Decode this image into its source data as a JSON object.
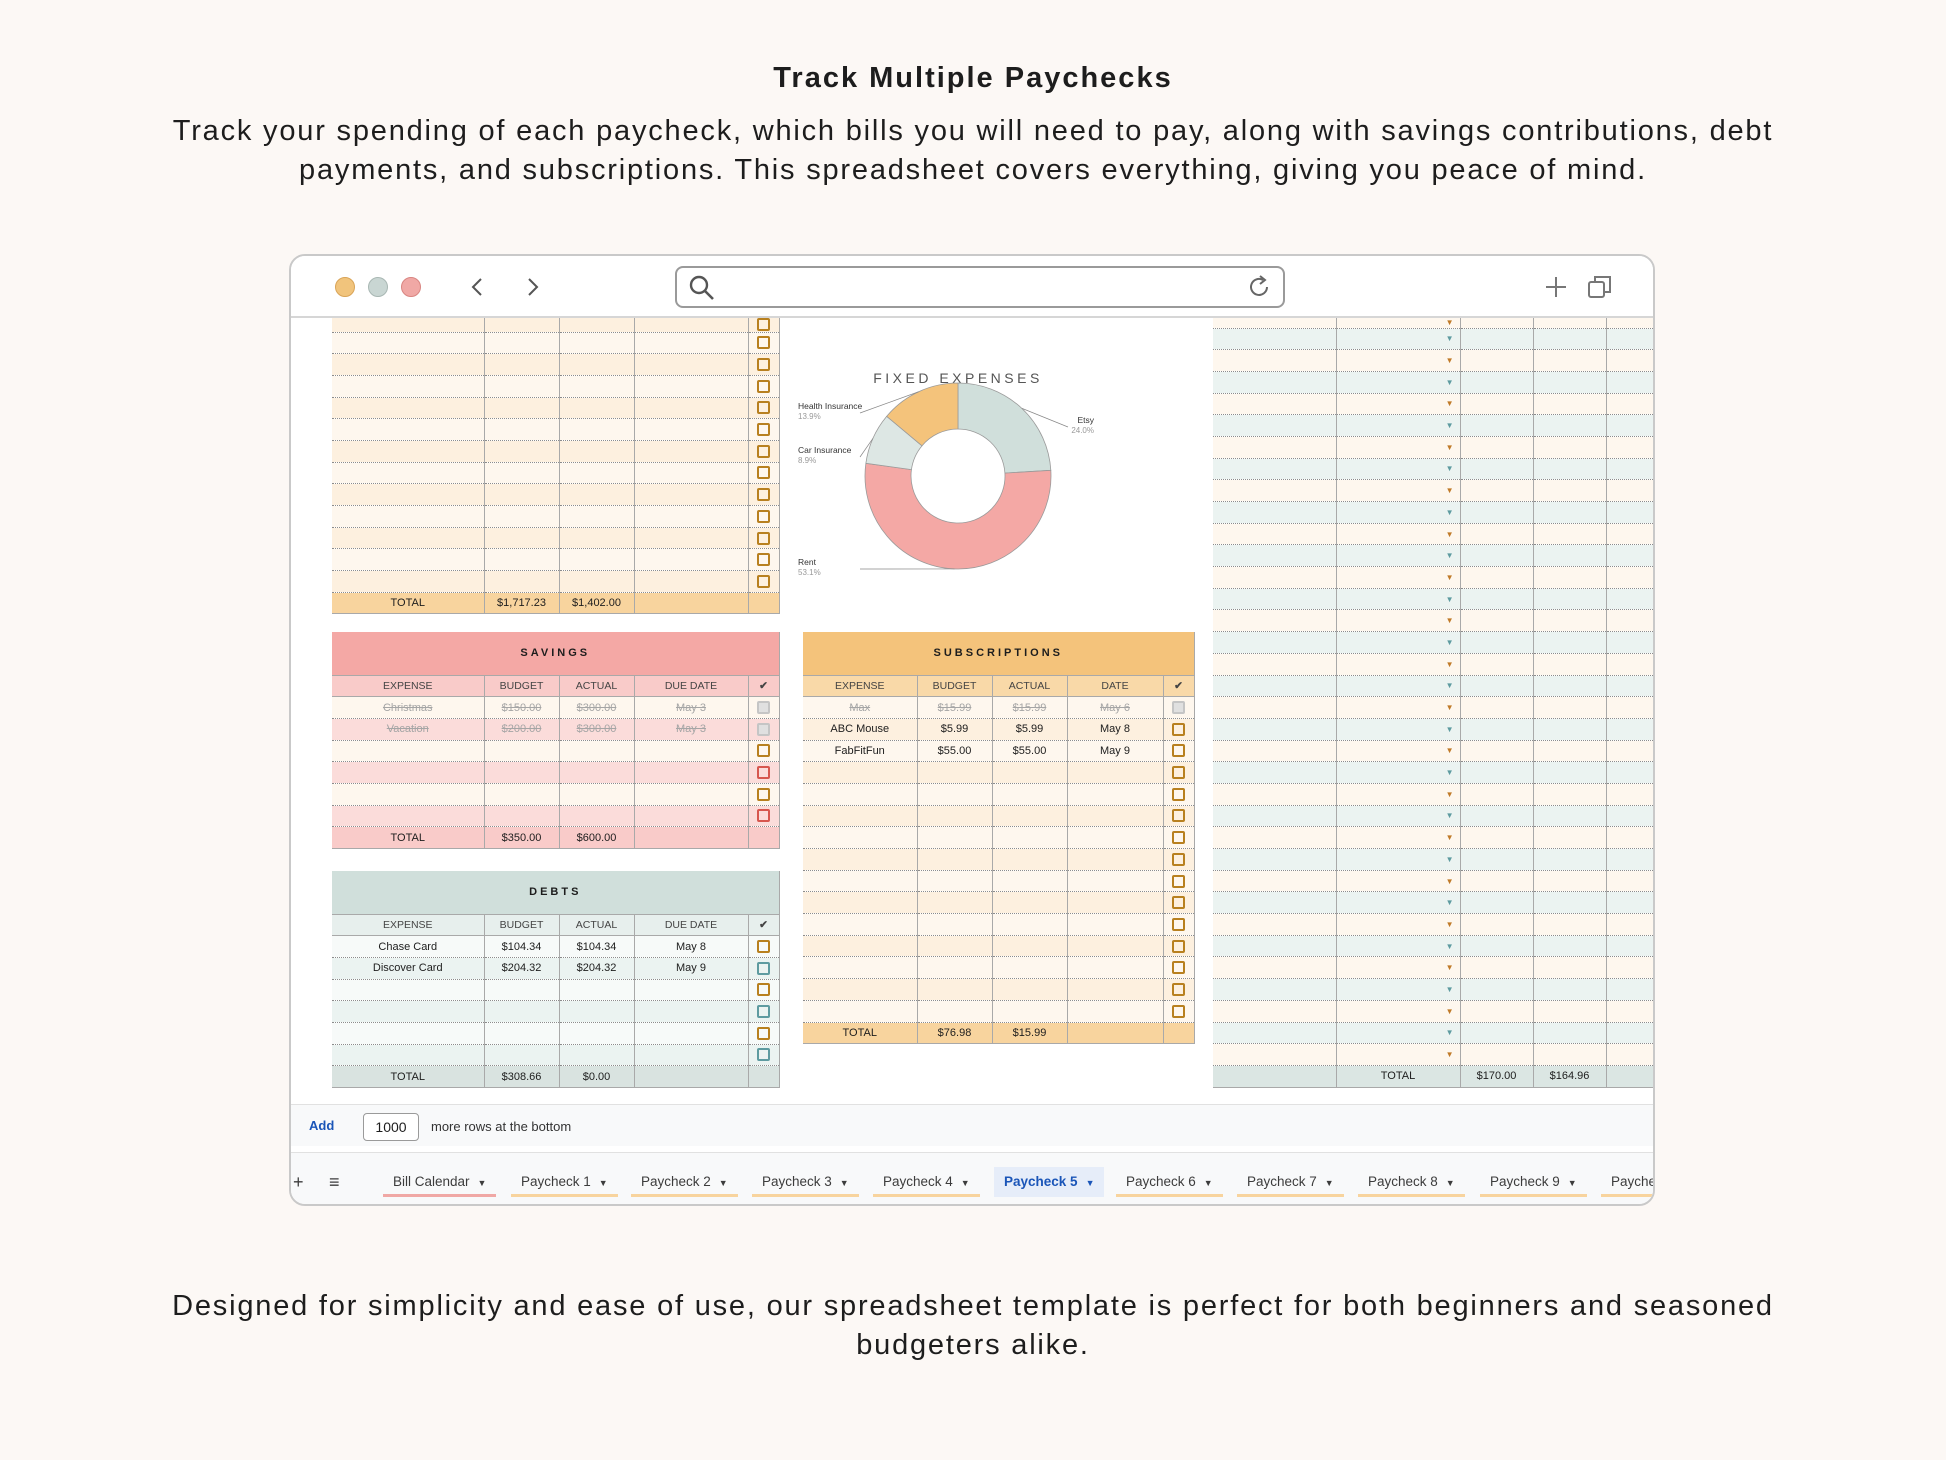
{
  "heading": "Track Multiple Paychecks",
  "subtext": "Track your spending of each paycheck, which bills you will need to pay, along with savings contributions, debt payments, and subscriptions. This spreadsheet covers everything, giving you peace of mind.",
  "footer": "Designed for simplicity and ease of use, our spreadsheet template is perfect for both beginners and seasoned budgeters alike.",
  "colors": {
    "background": "#fcf8f5",
    "dot_yellow": "#f1c47c",
    "dot_gray": "#c9d6d3",
    "dot_red": "#f0a8a5",
    "fixed_band_a": "#fdf0df",
    "fixed_band_b": "#fef7ee",
    "fixed_total": "#f8d49e",
    "savings_title": "#f4a8a5",
    "savings_header": "#f9cbc9",
    "debts_title": "#d0dfdb",
    "debts_header": "#e7efed",
    "subs_title": "#f4c37b",
    "subs_header": "#f9d9a8",
    "teal_band": "#ebf3f1",
    "chart_health": "#f4c37b",
    "chart_etsy": "#d0dfdb",
    "chart_rent": "#f4a8a5",
    "chart_car": "#dde7e4",
    "active_tab": "#1a55b8"
  },
  "browser": {
    "toolbar_icons": [
      "chevron-left-icon",
      "chevron-right-icon",
      "search-icon",
      "refresh-icon",
      "plus-icon",
      "copy-windows-icon"
    ]
  },
  "fixed_expenses": {
    "total_label": "TOTAL",
    "total_budget": "$1,717.23",
    "total_actual": "$1,402.00"
  },
  "chart_data": {
    "type": "pie",
    "title": "FIXED EXPENSES",
    "slices": [
      {
        "label": "Health Insurance",
        "percent_label": "13.9%",
        "value": 13.9
      },
      {
        "label": "Etsy",
        "percent_label": "24.0%",
        "value": 24.0
      },
      {
        "label": "Rent",
        "percent_label": "53.1%",
        "value": 53.1
      },
      {
        "label": "Car Insurance",
        "percent_label": "8.9%",
        "value": 8.9
      }
    ]
  },
  "savings": {
    "title": "SAVINGS",
    "columns": [
      "EXPENSE",
      "BUDGET",
      "ACTUAL",
      "DUE DATE",
      "✔"
    ],
    "rows": [
      {
        "expense": "Christmas",
        "budget": "$150.00",
        "actual": "$300.00",
        "date": "May 3",
        "done": true
      },
      {
        "expense": "Vacation",
        "budget": "$200.00",
        "actual": "$300.00",
        "date": "May 3",
        "done": true
      }
    ],
    "total_label": "TOTAL",
    "total_budget": "$350.00",
    "total_actual": "$600.00"
  },
  "debts": {
    "title": "DEBTS",
    "columns": [
      "EXPENSE",
      "BUDGET",
      "ACTUAL",
      "DUE DATE",
      "✔"
    ],
    "rows": [
      {
        "expense": "Chase Card",
        "budget": "$104.34",
        "actual": "$104.34",
        "date": "May 8",
        "done": false
      },
      {
        "expense": "Discover Card",
        "budget": "$204.32",
        "actual": "$204.32",
        "date": "May 9",
        "done": false
      }
    ],
    "total_label": "TOTAL",
    "total_budget": "$308.66",
    "total_actual": "$0.00"
  },
  "subscriptions": {
    "title": "SUBSCRIPTIONS",
    "columns": [
      "EXPENSE",
      "BUDGET",
      "ACTUAL",
      "DATE",
      "✔"
    ],
    "rows": [
      {
        "expense": "Max",
        "budget": "$15.99",
        "actual": "$15.99",
        "date": "May 6",
        "done": true
      },
      {
        "expense": "ABC Mouse",
        "budget": "$5.99",
        "actual": "$5.99",
        "date": "May 8",
        "done": false
      },
      {
        "expense": "FabFitFun",
        "budget": "$55.00",
        "actual": "$55.00",
        "date": "May 9",
        "done": false
      }
    ],
    "total_label": "TOTAL",
    "total_budget": "$76.98",
    "total_actual": "$15.99"
  },
  "right_panel": {
    "total_label": "TOTAL",
    "total_budget": "$170.00",
    "total_actual": "$164.96"
  },
  "add_rows": {
    "button": "Add",
    "count": "1000",
    "suffix": "more rows at the bottom"
  },
  "tabs": {
    "add_sheet": "+",
    "all_sheets": "≡",
    "items": [
      "Bill Calendar",
      "Paycheck 1",
      "Paycheck 2",
      "Paycheck 3",
      "Paycheck 4",
      "Paycheck 5",
      "Paycheck 6",
      "Paycheck 7",
      "Paycheck 8",
      "Paycheck 9",
      "Payche"
    ],
    "active": "Paycheck 5"
  }
}
